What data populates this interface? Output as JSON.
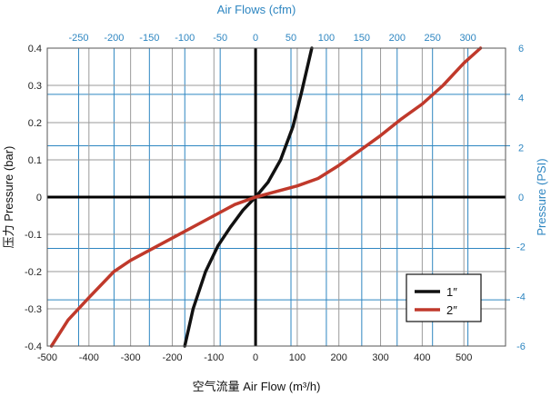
{
  "chart_data": {
    "type": "line",
    "title": "",
    "xlabel": "空气流量 Air Flow (m³/h)",
    "ylabel": "压力 Pressure (bar)",
    "xlabel_secondary": "Air Flows (cfm)",
    "ylabel_secondary": "Pressure (PSI)",
    "xlim": [
      -500,
      600
    ],
    "ylim": [
      -0.4,
      0.4
    ],
    "x_ticks": [
      -500,
      -400,
      -300,
      -200,
      -100,
      0,
      100,
      200,
      300,
      400,
      500
    ],
    "x_tick_labels": [
      "-500",
      "-400",
      "-300",
      "-200",
      "-100",
      "0",
      "100",
      "200",
      "300",
      "400",
      "500"
    ],
    "y_ticks": [
      -0.4,
      -0.3,
      -0.2,
      -0.1,
      0,
      0.1,
      0.2,
      0.3,
      0.4
    ],
    "y_tick_labels": [
      "-0.4",
      "-0.3",
      "-0.2",
      "-0.1",
      "0",
      "0.1",
      "0.2",
      "0.3",
      "0.4"
    ],
    "x2_ticks": [
      -250,
      -200,
      -150,
      -100,
      -50,
      0,
      50,
      100,
      150,
      200,
      250,
      300
    ],
    "x2_tick_labels": [
      "-250",
      "-200",
      "-150",
      "-100",
      "-50",
      "0",
      "50",
      "100",
      "150",
      "200",
      "250",
      "300"
    ],
    "x2_scale_per_x": 0.5886,
    "y2_ticks": [
      -6,
      -4,
      -2,
      0,
      2,
      4,
      6
    ],
    "y2_tick_labels": [
      "-6",
      "-4",
      "-2",
      "0",
      "2",
      "4",
      "6"
    ],
    "y2_scale_per_y": 14.5038,
    "grid": true,
    "legend_position": "bottom-right",
    "series": [
      {
        "name": "1″",
        "color": "#111111",
        "x": [
          -170,
          -150,
          -120,
          -90,
          -60,
          -30,
          0,
          30,
          60,
          90,
          110,
          135
        ],
        "y": [
          -0.4,
          -0.3,
          -0.2,
          -0.13,
          -0.08,
          -0.035,
          0,
          0.04,
          0.1,
          0.19,
          0.28,
          0.4
        ]
      },
      {
        "name": "2″",
        "color": "#c0392b",
        "x": [
          -490,
          -450,
          -400,
          -340,
          -300,
          -200,
          -100,
          -50,
          0,
          50,
          100,
          150,
          200,
          250,
          300,
          350,
          400,
          450,
          500,
          540
        ],
        "y": [
          -0.4,
          -0.33,
          -0.27,
          -0.2,
          -0.17,
          -0.11,
          -0.05,
          -0.02,
          0,
          0.015,
          0.03,
          0.05,
          0.085,
          0.125,
          0.165,
          0.21,
          0.25,
          0.3,
          0.36,
          0.4
        ]
      }
    ]
  }
}
